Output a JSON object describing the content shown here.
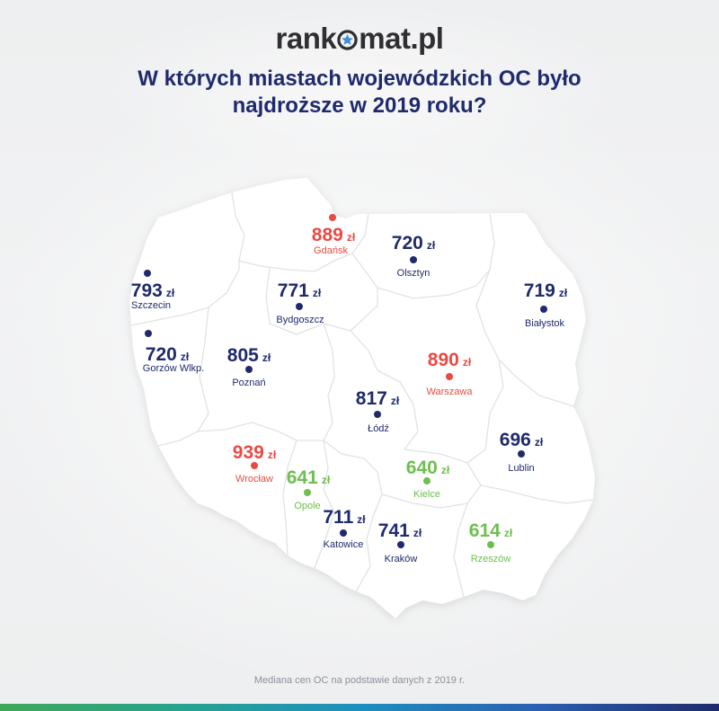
{
  "logo": {
    "prefix": "rank",
    "suffix": "mat.pl"
  },
  "title": {
    "line1": "W których miastach wojewódzkich OC było",
    "line2": "najdroższe w 2019 roku?"
  },
  "currency": "zł",
  "colors": {
    "navy": "#1f2a6d",
    "red": "#e94b43",
    "green": "#6dbf4f",
    "footer": "#8b909a",
    "map_fill": "#ffffff",
    "border": "#e0e2e6"
  },
  "cities": [
    {
      "name": "Gdańsk",
      "price": 889,
      "color": "#e94b43"
    },
    {
      "name": "Olsztyn",
      "price": 720,
      "color": "#1f2a6d"
    },
    {
      "name": "Szczecin",
      "price": 793,
      "color": "#1f2a6d"
    },
    {
      "name": "Bydgoszcz",
      "price": 771,
      "color": "#1f2a6d"
    },
    {
      "name": "Białystok",
      "price": 719,
      "color": "#1f2a6d"
    },
    {
      "name": "Gorzów Wlkp.",
      "price": 720,
      "color": "#1f2a6d"
    },
    {
      "name": "Poznań",
      "price": 805,
      "color": "#1f2a6d"
    },
    {
      "name": "Warszawa",
      "price": 890,
      "color": "#e94b43"
    },
    {
      "name": "Łódź",
      "price": 817,
      "color": "#1f2a6d"
    },
    {
      "name": "Lublin",
      "price": 696,
      "color": "#1f2a6d"
    },
    {
      "name": "Wrocław",
      "price": 939,
      "color": "#e94b43"
    },
    {
      "name": "Opole",
      "price": 641,
      "color": "#6dbf4f"
    },
    {
      "name": "Kielce",
      "price": 640,
      "color": "#6dbf4f"
    },
    {
      "name": "Katowice",
      "price": 711,
      "color": "#1f2a6d"
    },
    {
      "name": "Kraków",
      "price": 741,
      "color": "#1f2a6d"
    },
    {
      "name": "Rzeszów",
      "price": 614,
      "color": "#6dbf4f"
    }
  ],
  "footer": "Mediana cen OC na podstawie danych z 2019 r."
}
